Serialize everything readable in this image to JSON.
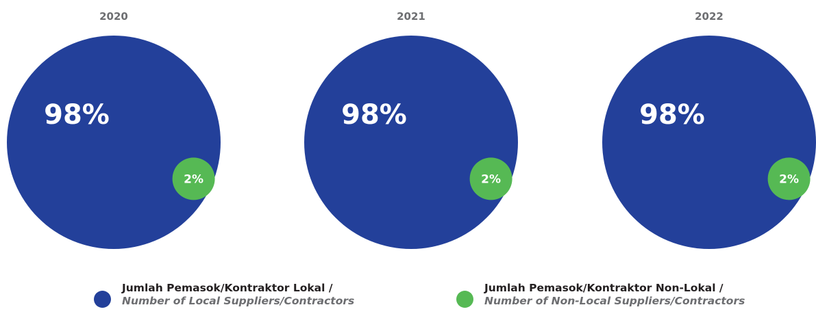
{
  "chart_data": [
    {
      "type": "pie",
      "title": "2020",
      "categories": [
        "Local",
        "Non-Local"
      ],
      "values": [
        98,
        2
      ],
      "labels": [
        "98%",
        "2%"
      ],
      "colors": [
        "#23409a",
        "#56b954"
      ]
    },
    {
      "type": "pie",
      "title": "2021",
      "categories": [
        "Local",
        "Non-Local"
      ],
      "values": [
        98,
        2
      ],
      "labels": [
        "98%",
        "2%"
      ],
      "colors": [
        "#23409a",
        "#56b954"
      ]
    },
    {
      "type": "pie",
      "title": "2022",
      "categories": [
        "Local",
        "Non-Local"
      ],
      "values": [
        98,
        2
      ],
      "labels": [
        "98%",
        "2%"
      ],
      "colors": [
        "#23409a",
        "#56b954"
      ]
    }
  ],
  "legend": {
    "placement": "bottom",
    "items": [
      {
        "label": "Jumlah Pemasok/Kontraktor Lokal /",
        "sublabel": "Number of Local Suppliers/Contractors",
        "color": "#23409a"
      },
      {
        "label": "Jumlah Pemasok/Kontraktor Non-Lokal /",
        "sublabel": "Number of Non-Local Suppliers/Contractors",
        "color": "#56b954"
      }
    ]
  }
}
